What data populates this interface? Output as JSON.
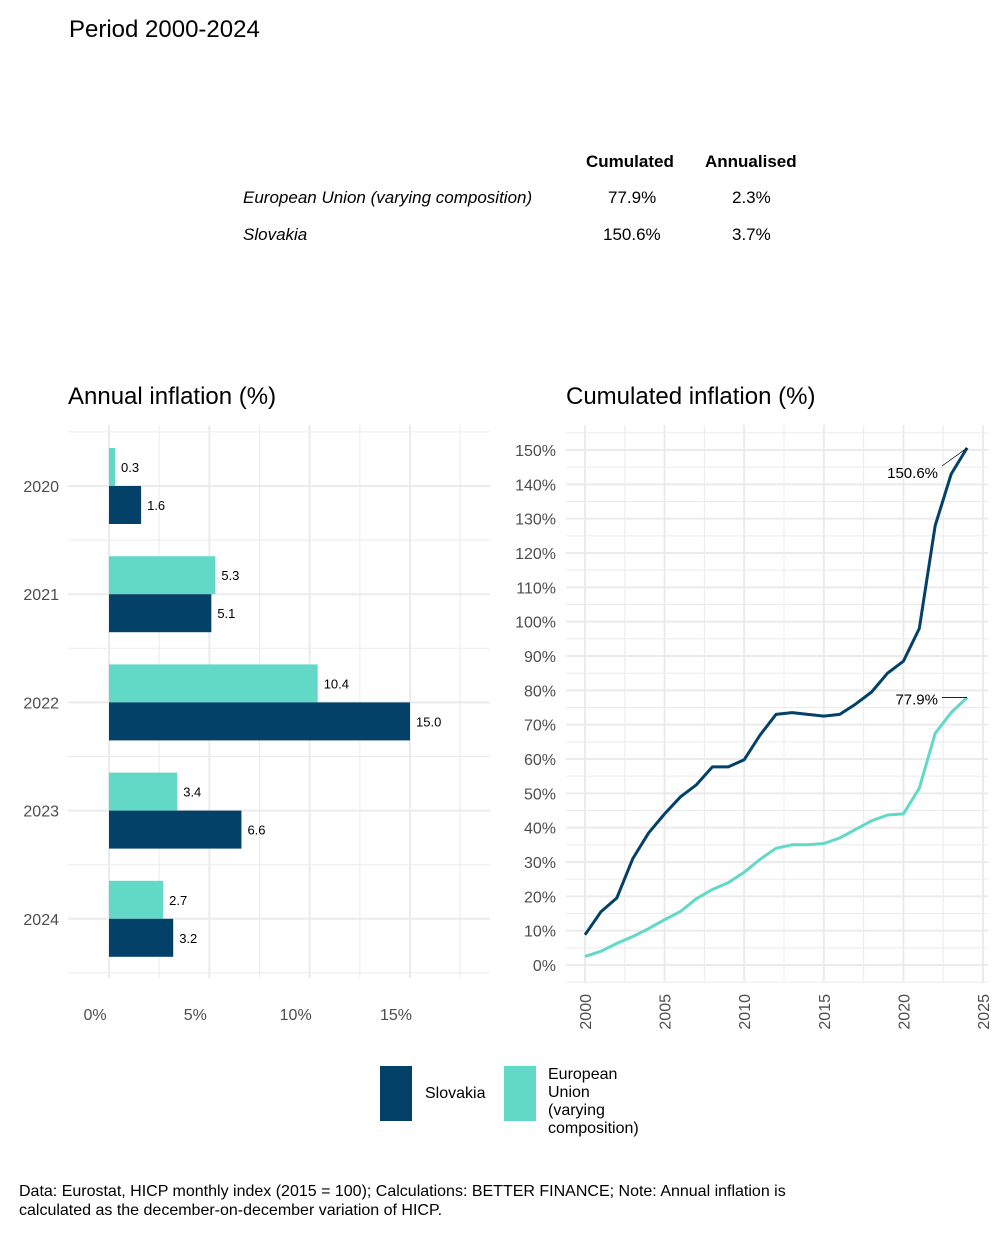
{
  "period_title": "Period 2000-2024",
  "summary_table": {
    "headers": [
      "Cumulated",
      "Annualised"
    ],
    "rows": [
      {
        "name": "European Union (varying composition)",
        "cumulated": "77.9%",
        "annualised": "2.3%"
      },
      {
        "name": "Slovakia",
        "cumulated": "150.6%",
        "annualised": "3.7%"
      }
    ]
  },
  "colors": {
    "slovakia": "#034169",
    "eu": "#62D9C7",
    "grid": "#EBEBEB",
    "axis_text": "#4D4D4D"
  },
  "legend": {
    "items": [
      {
        "key": "slovakia",
        "label": "Slovakia"
      },
      {
        "key": "eu",
        "label": "European Union\n(varying\ncomposition)"
      }
    ]
  },
  "caption": "Data: Eurostat, HICP monthly index (2015 = 100); Calculations: BETTER FINANCE; Note: Annual inflation is calculated as the december-on-december variation of HICP.",
  "chart_data": [
    {
      "type": "bar",
      "orientation": "horizontal",
      "title": "Annual inflation (%)",
      "xlabel": "",
      "ylabel": "",
      "categories": [
        "2020",
        "2021",
        "2022",
        "2023",
        "2024"
      ],
      "series": [
        {
          "name": "European Union (varying composition)",
          "key": "eu",
          "values": [
            0.3,
            5.3,
            10.4,
            3.4,
            2.7
          ],
          "labels": [
            "0.3",
            "5.3",
            "10.4",
            "3.4",
            "2.7"
          ]
        },
        {
          "name": "Slovakia",
          "key": "slovakia",
          "values": [
            1.6,
            5.1,
            15.0,
            6.6,
            3.2
          ],
          "labels": [
            "1.6",
            "5.1",
            "15.0",
            "6.6",
            "3.2"
          ]
        }
      ],
      "xlim": [
        -2.6,
        18.6
      ],
      "xticks": [
        0,
        5,
        10,
        15
      ],
      "xtick_labels": [
        "0%",
        "5%",
        "10%",
        "15%"
      ],
      "grid": true
    },
    {
      "type": "line",
      "title": "Cumulated inflation (%)",
      "xlabel": "",
      "ylabel": "",
      "x": [
        2000,
        2001,
        2002,
        2003,
        2004,
        2005,
        2006,
        2007,
        2008,
        2009,
        2010,
        2011,
        2012,
        2013,
        2014,
        2015,
        2016,
        2017,
        2018,
        2019,
        2020,
        2021,
        2022,
        2023,
        2024
      ],
      "series": [
        {
          "name": "Slovakia",
          "key": "slovakia",
          "values": [
            8.8,
            15.5,
            19.5,
            31.0,
            38.5,
            44.0,
            49.0,
            52.5,
            57.7,
            57.7,
            59.8,
            67.0,
            73.0,
            73.5,
            73.0,
            72.5,
            73.0,
            76.0,
            79.5,
            85.0,
            88.5,
            98.0,
            128.0,
            143.0,
            150.6
          ],
          "end_label": "150.6%"
        },
        {
          "name": "European Union (varying composition)",
          "key": "eu",
          "values": [
            2.5,
            4.0,
            6.3,
            8.3,
            10.6,
            13.2,
            15.6,
            19.3,
            22.0,
            24.0,
            27.0,
            30.8,
            34.0,
            35.0,
            35.0,
            35.4,
            37.0,
            39.5,
            42.0,
            43.7,
            44.0,
            51.5,
            67.5,
            73.5,
            77.9
          ],
          "end_label": "77.9%"
        }
      ],
      "xlim": [
        1999.0,
        2025.2
      ],
      "ylim": [
        -5,
        155
      ],
      "xticks": [
        2000,
        2005,
        2010,
        2015,
        2020,
        2025
      ],
      "xtick_labels": [
        "2000",
        "2005",
        "2010",
        "2015",
        "2020",
        "2025"
      ],
      "yticks": [
        0,
        10,
        20,
        30,
        40,
        50,
        60,
        70,
        80,
        90,
        100,
        110,
        120,
        130,
        140,
        150
      ],
      "ytick_labels": [
        "0%",
        "10%",
        "20%",
        "30%",
        "40%",
        "50%",
        "60%",
        "70%",
        "80%",
        "90%",
        "100%",
        "110%",
        "120%",
        "130%",
        "140%",
        "150%"
      ],
      "grid": true
    }
  ]
}
